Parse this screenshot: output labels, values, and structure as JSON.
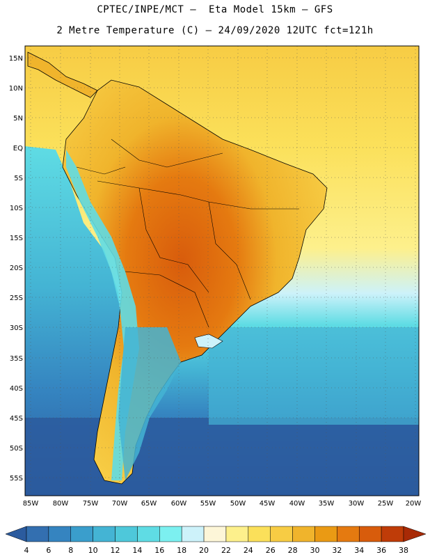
{
  "title": {
    "line1": "CPTEC/INPE/MCT –  Eta Model 15km – GFS",
    "line2": "2 Metre Temperature (C) – 24/09/2020 12UTC fct=121h"
  },
  "axes": {
    "lat_labels": [
      "15N",
      "10N",
      "5N",
      "EQ",
      "5S",
      "10S",
      "15S",
      "20S",
      "25S",
      "30S",
      "35S",
      "40S",
      "45S",
      "50S",
      "55S"
    ],
    "lon_labels": [
      "85W",
      "80W",
      "75W",
      "70W",
      "65W",
      "60W",
      "55W",
      "50W",
      "45W",
      "40W",
      "35W",
      "30W",
      "25W",
      "20W"
    ]
  },
  "legend": {
    "labels": [
      "4",
      "6",
      "8",
      "10",
      "12",
      "14",
      "16",
      "18",
      "20",
      "22",
      "24",
      "26",
      "28",
      "30",
      "32",
      "34",
      "36",
      "38"
    ],
    "colors": [
      "#2b5b9e",
      "#336fb0",
      "#3584c0",
      "#3a9ecc",
      "#44b4d4",
      "#4ec8da",
      "#5fdce4",
      "#7cf0f0",
      "#cdf2fa",
      "#fdf6d8",
      "#fdf08c",
      "#fbe05a",
      "#f7cc44",
      "#f0b42c",
      "#ea9a14",
      "#e57a10",
      "#d85c0c",
      "#bf3c08",
      "#a82a06"
    ]
  },
  "map": {
    "ocean_colors": {
      "cold": "#2b5b9e",
      "mid": "#3a9ecc",
      "cool": "#4ec8da",
      "warm": "#fbe05a"
    },
    "land_colors": {
      "hot": "#d85c0c",
      "warm": "#f0b42c",
      "mild": "#f7cc44",
      "andes": "#5fdce4",
      "patagonia": "#4ec8da"
    }
  }
}
